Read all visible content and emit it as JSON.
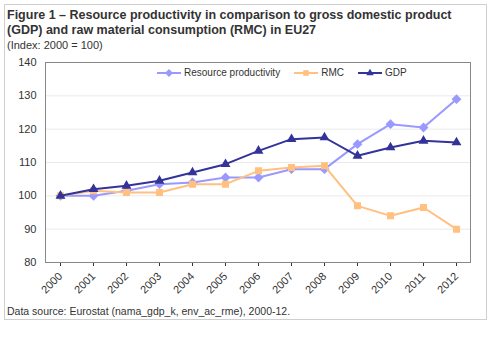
{
  "chart_data": {
    "type": "line",
    "title": "Figure 1 – Resource productivity in comparison to gross domestic product (GDP) and raw material consumption (RMC) in EU27",
    "subtitle": "(Index: 2000 = 100)",
    "caption": "Data source: Eurostat (nama_gdp_k, env_ac_rme), 2000-12.",
    "categories": [
      "2000",
      "2001",
      "2002",
      "2003",
      "2004",
      "2005",
      "2006",
      "2007",
      "2008",
      "2009",
      "2010",
      "2011",
      "2012"
    ],
    "series": [
      {
        "name": "Resource productivity",
        "color": "#9999ff",
        "marker": "diamond",
        "values": [
          100,
          100,
          101.5,
          103.5,
          104,
          105.5,
          105.5,
          108,
          108,
          115.5,
          121.5,
          120.5,
          129
        ]
      },
      {
        "name": "RMC",
        "color": "#ffc080",
        "marker": "square",
        "values": [
          100,
          101.5,
          101,
          101,
          103.5,
          103.5,
          107.5,
          108.5,
          109,
          97,
          94,
          96.5,
          90
        ]
      },
      {
        "name": "GDP",
        "color": "#333399",
        "marker": "triangle",
        "values": [
          100,
          102,
          103,
          104.5,
          107,
          109.5,
          113.5,
          117,
          117.5,
          112,
          114.5,
          116.5,
          116
        ]
      }
    ],
    "ylim": [
      80,
      140
    ],
    "yticks": [
      80,
      90,
      100,
      110,
      120,
      130,
      140
    ],
    "grid": true,
    "legend": "top"
  }
}
